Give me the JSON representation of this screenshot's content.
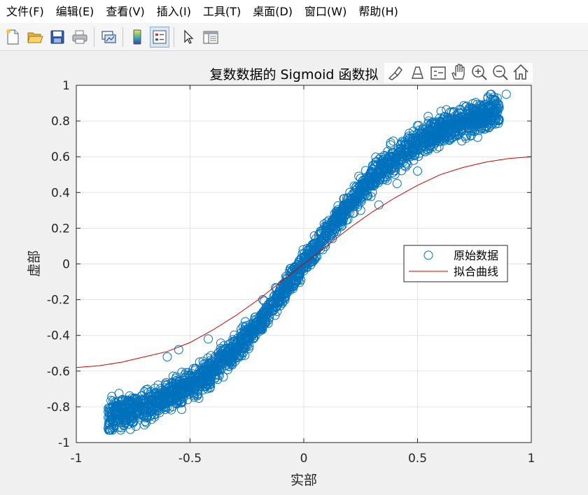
{
  "menubar": {
    "items": [
      "文件(F)",
      "编辑(E)",
      "查看(V)",
      "插入(I)",
      "工具(T)",
      "桌面(D)",
      "窗口(W)",
      "帮助(H)"
    ]
  },
  "toolbar": {
    "buttons": [
      "new-figure-icon",
      "open-file-icon",
      "save-icon",
      "print-icon",
      "link-plot-icon",
      "colorbar-icon",
      "legend-icon",
      "pointer-icon",
      "property-inspector-icon"
    ]
  },
  "axes_toolbar": {
    "buttons": [
      "brush-icon",
      "data-tip-icon",
      "data-cursor-icon",
      "pan-icon",
      "zoom-in-icon",
      "zoom-out-icon",
      "home-icon"
    ]
  },
  "colors": {
    "scatter": "#0072bd",
    "fit_line": "#d00000",
    "grid": "#e3e3e3"
  },
  "chart_data": {
    "type": "scatter",
    "title": "复数数据的 Sigmoid 函数拟",
    "xlabel": "实部",
    "ylabel": "虚部",
    "xlim": [
      -1,
      1
    ],
    "ylim": [
      -1,
      1
    ],
    "xticks": [
      "-1",
      "-0.5",
      "0",
      "0.5",
      "1"
    ],
    "yticks": [
      "1",
      "0.8",
      "0.6",
      "0.4",
      "0.2",
      "0",
      "-0.2",
      "-0.4",
      "-0.6",
      "-0.8",
      "-1"
    ],
    "grid": true,
    "legend_position": "right",
    "series": [
      {
        "name": "原始数据",
        "kind": "scatter",
        "marker": "circle-open",
        "x_range": [
          -0.88,
          0.89
        ],
        "y_range": [
          -0.93,
          0.95
        ],
        "trend": "y ≈ 0.92·tanh(1.9·x)"
      },
      {
        "name": "拟合曲线",
        "kind": "line",
        "x": [
          -1,
          -0.9,
          -0.8,
          -0.7,
          -0.6,
          -0.5,
          -0.4,
          -0.3,
          -0.2,
          -0.1,
          0,
          0.1,
          0.2,
          0.3,
          0.4,
          0.5,
          0.6,
          0.7,
          0.8,
          0.9,
          1
        ],
        "y": [
          -0.58,
          -0.57,
          -0.55,
          -0.52,
          -0.49,
          -0.44,
          -0.37,
          -0.29,
          -0.2,
          -0.1,
          0,
          0.1,
          0.2,
          0.29,
          0.37,
          0.44,
          0.5,
          0.54,
          0.57,
          0.59,
          0.6
        ]
      }
    ]
  }
}
